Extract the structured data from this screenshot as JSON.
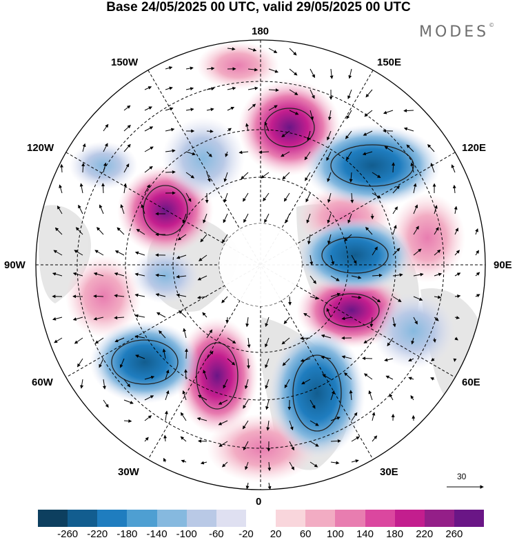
{
  "header": {
    "title": "Base 24/05/2025 00 UTC, valid 29/05/2025 00 UTC",
    "brand": "MODES",
    "brand_mark": "©"
  },
  "map": {
    "projection": "north polar stereographic",
    "longitude_labels": {
      "top": "180",
      "bottom": "0",
      "left": "90W",
      "right": "90E",
      "upper_left_1": "150W",
      "upper_left_2": "120W",
      "lower_left_1": "60W",
      "lower_left_2": "30W",
      "upper_right_1": "150E",
      "upper_right_2": "120E",
      "lower_right_1": "60E",
      "lower_right_2": "30E"
    },
    "reference_vector": "30",
    "field_colors": {
      "positive": "#d6338f",
      "negative": "#2f7cbf",
      "land": "#e3e3e3",
      "grid": "#000000"
    }
  },
  "colorbar": {
    "tick_labels": [
      "-260",
      "-220",
      "-180",
      "-140",
      "-100",
      "-60",
      "-20",
      "20",
      "60",
      "100",
      "140",
      "180",
      "220",
      "260"
    ],
    "colors": [
      "#0d3f5f",
      "#125d8f",
      "#1f7dbf",
      "#4e9fd2",
      "#86b9df",
      "#b9c9e6",
      "#dfe0f1",
      "#ffffff",
      "#f9d6dc",
      "#f2acc3",
      "#e87db0",
      "#db479f",
      "#c31e8e",
      "#941f88",
      "#6a1686"
    ]
  }
}
